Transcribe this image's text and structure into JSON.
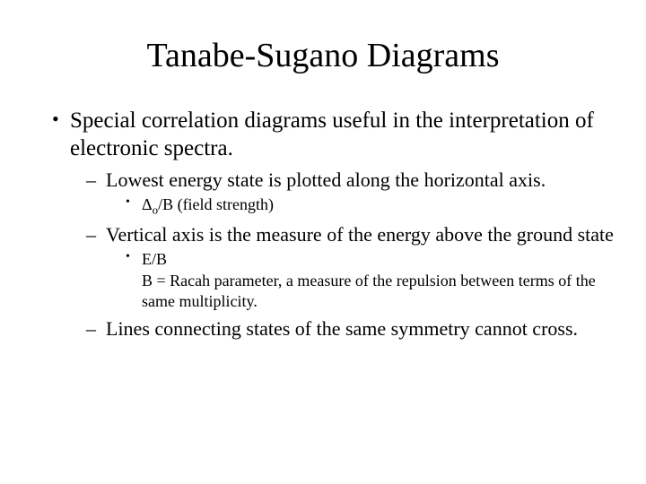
{
  "title": "Tanabe-Sugano Diagrams",
  "b1": "Special correlation diagrams useful in the interpretation of electronic spectra.",
  "b1a": "Lowest energy state is plotted along the horizontal axis.",
  "b1a_i_pre": "Δ",
  "b1a_i_sub": "o",
  "b1a_i_post": "/B (field strength)",
  "b1b": "Vertical axis is the measure of the energy above the ground state",
  "b1b_i": "E/B",
  "b1b_ii": "B = Racah parameter, a measure of the repulsion between terms of the same multiplicity.",
  "b1c": "Lines connecting states of the same symmetry cannot cross."
}
